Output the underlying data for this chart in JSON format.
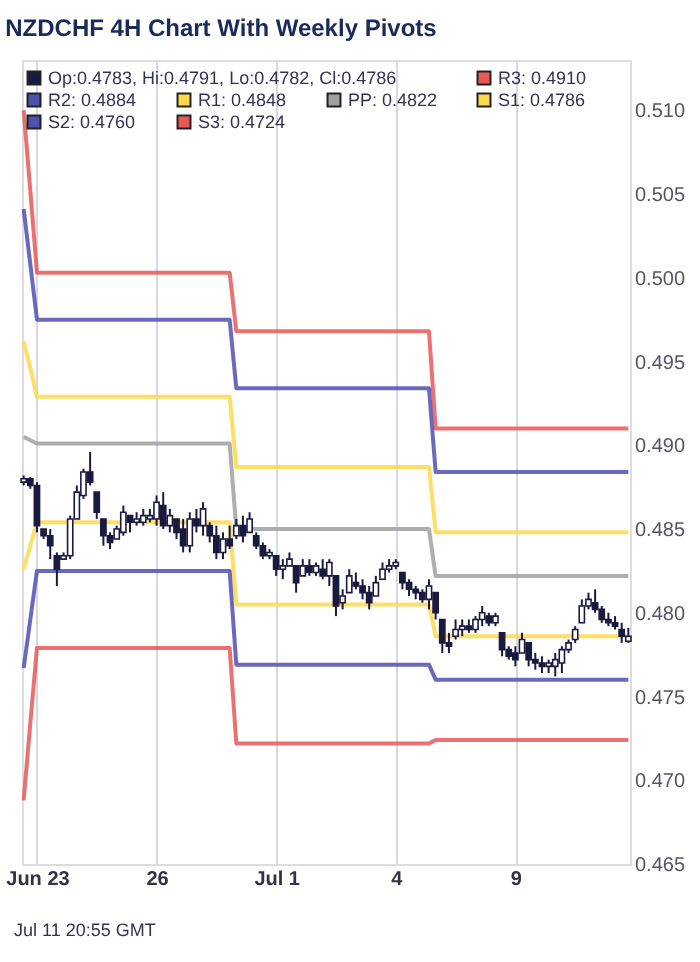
{
  "chart_data": {
    "type": "candlestick",
    "title": "NZDCHF 4H Chart With Weekly Pivots",
    "annotations": [
      "Jul 11 20:55 GMT"
    ],
    "categories": [
      null,
      null,
      "Jun 23",
      null,
      null,
      null,
      null,
      null,
      null,
      null,
      null,
      null,
      null,
      null,
      null,
      null,
      null,
      null,
      null,
      null,
      "26",
      null,
      null,
      null,
      null,
      null,
      null,
      null,
      null,
      null,
      null,
      null,
      null,
      null,
      null,
      null,
      null,
      null,
      "Jul 1",
      null,
      null,
      null,
      null,
      null,
      null,
      null,
      null,
      null,
      null,
      null,
      null,
      null,
      null,
      null,
      null,
      null,
      "4",
      null,
      null,
      null,
      null,
      null,
      null,
      null,
      null,
      null,
      null,
      null,
      null,
      null,
      null,
      null,
      null,
      null,
      "9",
      null,
      null,
      null,
      null,
      null,
      null,
      null,
      null,
      null,
      null,
      null,
      null,
      null,
      null,
      null,
      null,
      null
    ],
    "ylim": [
      0.465,
      0.513
    ],
    "yticks": [
      0.465,
      {
        "value": 0.47,
        "label": "0.470"
      },
      0.475,
      {
        "value": 0.48,
        "label": "0.480"
      },
      0.485,
      {
        "value": 0.49,
        "label": "0.490"
      },
      0.495,
      {
        "value": 0.5,
        "label": "0.500"
      },
      0.505,
      {
        "value": 0.51,
        "label": "0.510"
      }
    ],
    "grid": "x",
    "legend": "top left",
    "series": [
      {
        "name": "Op:0.4783, Hi:0.4791, Lo:0.4782, Cl:0.4786",
        "color": "#1a1a40",
        "ohlc": [
          [
            0.4878,
            0.4882,
            0.4876,
            0.488
          ],
          [
            0.488,
            0.4881,
            0.4874,
            0.4876
          ],
          [
            0.4876,
            0.4878,
            0.4848,
            0.4852
          ],
          [
            0.485,
            0.485,
            0.4844,
            0.4846
          ],
          [
            0.4846,
            0.485,
            0.4832,
            0.484
          ],
          [
            0.4834,
            0.4836,
            0.4816,
            0.4826
          ],
          [
            0.4832,
            0.4836,
            0.4832,
            0.4834
          ],
          [
            0.4834,
            0.4858,
            0.4832,
            0.4856
          ],
          [
            0.4856,
            0.4876,
            0.4856,
            0.4872
          ],
          [
            0.487,
            0.4886,
            0.4868,
            0.4884
          ],
          [
            0.4884,
            0.4896,
            0.4876,
            0.4878
          ],
          [
            0.4872,
            0.4872,
            0.4856,
            0.486
          ],
          [
            0.4856,
            0.4856,
            0.484,
            0.4846
          ],
          [
            0.4846,
            0.4848,
            0.4838,
            0.4842
          ],
          [
            0.4844,
            0.4852,
            0.4844,
            0.485
          ],
          [
            0.4848,
            0.4864,
            0.4846,
            0.486
          ],
          [
            0.4858,
            0.4858,
            0.4848,
            0.4854
          ],
          [
            0.4854,
            0.486,
            0.4852,
            0.4856
          ],
          [
            0.4854,
            0.4862,
            0.4852,
            0.4858
          ],
          [
            0.4856,
            0.4862,
            0.4854,
            0.4858
          ],
          [
            0.4856,
            0.487,
            0.4852,
            0.4866
          ],
          [
            0.4864,
            0.4872,
            0.485,
            0.4852
          ],
          [
            0.4852,
            0.4862,
            0.4848,
            0.4858
          ],
          [
            0.4856,
            0.4856,
            0.4844,
            0.4848
          ],
          [
            0.485,
            0.4856,
            0.4836,
            0.484
          ],
          [
            0.484,
            0.486,
            0.4836,
            0.4856
          ],
          [
            0.4856,
            0.4862,
            0.4848,
            0.4852
          ],
          [
            0.4852,
            0.4866,
            0.4846,
            0.4862
          ],
          [
            0.4852,
            0.4854,
            0.4842,
            0.4846
          ],
          [
            0.4846,
            0.4852,
            0.4832,
            0.4836
          ],
          [
            0.4836,
            0.4848,
            0.4832,
            0.4844
          ],
          [
            0.4844,
            0.4852,
            0.4838,
            0.484
          ],
          [
            0.4846,
            0.4856,
            0.4844,
            0.4852
          ],
          [
            0.4852,
            0.4858,
            0.4842,
            0.4846
          ],
          [
            0.4848,
            0.486,
            0.4848,
            0.4856
          ],
          [
            0.4846,
            0.4848,
            0.4838,
            0.484
          ],
          [
            0.484,
            0.4842,
            0.4832,
            0.4834
          ],
          [
            0.4834,
            0.4838,
            0.4832,
            0.4836
          ],
          [
            0.4834,
            0.4834,
            0.4822,
            0.4826
          ],
          [
            0.4826,
            0.4832,
            0.482,
            0.4828
          ],
          [
            0.4828,
            0.4836,
            0.4828,
            0.4832
          ],
          [
            0.4828,
            0.4828,
            0.4812,
            0.4818
          ],
          [
            0.4822,
            0.4832,
            0.4822,
            0.4828
          ],
          [
            0.4828,
            0.4832,
            0.4822,
            0.4824
          ],
          [
            0.4824,
            0.483,
            0.4822,
            0.4828
          ],
          [
            0.4826,
            0.4832,
            0.482,
            0.4822
          ],
          [
            0.4822,
            0.4832,
            0.4816,
            0.483
          ],
          [
            0.4822,
            0.4822,
            0.4798,
            0.4804
          ],
          [
            0.4806,
            0.4814,
            0.4802,
            0.481
          ],
          [
            0.4812,
            0.4826,
            0.4812,
            0.4822
          ],
          [
            0.4818,
            0.4824,
            0.4814,
            0.4816
          ],
          [
            0.4816,
            0.482,
            0.4808,
            0.4812
          ],
          [
            0.4812,
            0.4816,
            0.4802,
            0.4806
          ],
          [
            0.481,
            0.4822,
            0.481,
            0.4818
          ],
          [
            0.482,
            0.483,
            0.482,
            0.4826
          ],
          [
            0.4826,
            0.4832,
            0.4824,
            0.4828
          ],
          [
            0.4828,
            0.4832,
            0.4826,
            0.483
          ],
          [
            0.4824,
            0.4824,
            0.4814,
            0.4818
          ],
          [
            0.4818,
            0.482,
            0.481,
            0.4814
          ],
          [
            0.4814,
            0.4816,
            0.4808,
            0.4812
          ],
          [
            0.4812,
            0.4814,
            0.4806,
            0.4808
          ],
          [
            0.4808,
            0.482,
            0.4802,
            0.4816
          ],
          [
            0.4812,
            0.4812,
            0.4796,
            0.48
          ],
          [
            0.4796,
            0.4796,
            0.4776,
            0.4782
          ],
          [
            0.4782,
            0.4788,
            0.4776,
            0.478
          ],
          [
            0.4786,
            0.4796,
            0.4784,
            0.479
          ],
          [
            0.479,
            0.4796,
            0.4786,
            0.4792
          ],
          [
            0.4792,
            0.4796,
            0.4788,
            0.479
          ],
          [
            0.479,
            0.4798,
            0.4788,
            0.4796
          ],
          [
            0.4796,
            0.4804,
            0.4792,
            0.48
          ],
          [
            0.4798,
            0.48,
            0.4792,
            0.4794
          ],
          [
            0.4794,
            0.48,
            0.4792,
            0.4798
          ],
          [
            0.4788,
            0.4788,
            0.4774,
            0.4778
          ],
          [
            0.4778,
            0.478,
            0.4772,
            0.4774
          ],
          [
            0.4776,
            0.478,
            0.4768,
            0.4772
          ],
          [
            0.4776,
            0.4788,
            0.4776,
            0.4784
          ],
          [
            0.4782,
            0.4782,
            0.4768,
            0.4772
          ],
          [
            0.4772,
            0.4776,
            0.4766,
            0.477
          ],
          [
            0.477,
            0.4774,
            0.4764,
            0.4768
          ],
          [
            0.4768,
            0.4772,
            0.4764,
            0.477
          ],
          [
            0.4768,
            0.4776,
            0.4762,
            0.4772
          ],
          [
            0.477,
            0.478,
            0.4764,
            0.4778
          ],
          [
            0.4778,
            0.4784,
            0.4776,
            0.4782
          ],
          [
            0.4784,
            0.4792,
            0.4782,
            0.479
          ],
          [
            0.4794,
            0.4808,
            0.4794,
            0.4804
          ],
          [
            0.4804,
            0.4812,
            0.4802,
            0.4808
          ],
          [
            0.4806,
            0.4814,
            0.48,
            0.4802
          ],
          [
            0.4802,
            0.4804,
            0.4794,
            0.4796
          ],
          [
            0.4796,
            0.48,
            0.4792,
            0.4794
          ],
          [
            0.4794,
            0.4798,
            0.479,
            0.4792
          ],
          [
            0.479,
            0.4794,
            0.4782,
            0.4786
          ],
          [
            0.4783,
            0.4791,
            0.4782,
            0.4786
          ]
        ]
      },
      {
        "name": "R3: 0.4910",
        "type": "line",
        "color": "#e85858",
        "values": [
          0.51,
          0.5052,
          0.5003,
          0.5003,
          0.5003,
          0.5003,
          0.5003,
          0.5003,
          0.5003,
          0.5003,
          0.5003,
          0.5003,
          0.5003,
          0.5003,
          0.5003,
          0.5003,
          0.5003,
          0.5003,
          0.5003,
          0.5003,
          0.5003,
          0.5003,
          0.5003,
          0.5003,
          0.5003,
          0.5003,
          0.5003,
          0.5003,
          0.5003,
          0.5003,
          0.5003,
          0.5003,
          0.4968,
          0.4968,
          0.4968,
          0.4968,
          0.4968,
          0.4968,
          0.4968,
          0.4968,
          0.4968,
          0.4968,
          0.4968,
          0.4968,
          0.4968,
          0.4968,
          0.4968,
          0.4968,
          0.4968,
          0.4968,
          0.4968,
          0.4968,
          0.4968,
          0.4968,
          0.4968,
          0.4968,
          0.4968,
          0.4968,
          0.4968,
          0.4968,
          0.4968,
          0.4968,
          0.491,
          0.491,
          0.491,
          0.491,
          0.491,
          0.491,
          0.491,
          0.491,
          0.491,
          0.491,
          0.491,
          0.491,
          0.491,
          0.491,
          0.491,
          0.491,
          0.491,
          0.491,
          0.491,
          0.491,
          0.491,
          0.491,
          0.491,
          0.491,
          0.491,
          0.491,
          0.491,
          0.491,
          0.491,
          0.491
        ]
      },
      {
        "name": "R2: 0.4884",
        "type": "line",
        "color": "#5050b0",
        "values": [
          0.5041,
          0.5008,
          0.4975,
          0.4975,
          0.4975,
          0.4975,
          0.4975,
          0.4975,
          0.4975,
          0.4975,
          0.4975,
          0.4975,
          0.4975,
          0.4975,
          0.4975,
          0.4975,
          0.4975,
          0.4975,
          0.4975,
          0.4975,
          0.4975,
          0.4975,
          0.4975,
          0.4975,
          0.4975,
          0.4975,
          0.4975,
          0.4975,
          0.4975,
          0.4975,
          0.4975,
          0.4975,
          0.4934,
          0.4934,
          0.4934,
          0.4934,
          0.4934,
          0.4934,
          0.4934,
          0.4934,
          0.4934,
          0.4934,
          0.4934,
          0.4934,
          0.4934,
          0.4934,
          0.4934,
          0.4934,
          0.4934,
          0.4934,
          0.4934,
          0.4934,
          0.4934,
          0.4934,
          0.4934,
          0.4934,
          0.4934,
          0.4934,
          0.4934,
          0.4934,
          0.4934,
          0.4934,
          0.4884,
          0.4884,
          0.4884,
          0.4884,
          0.4884,
          0.4884,
          0.4884,
          0.4884,
          0.4884,
          0.4884,
          0.4884,
          0.4884,
          0.4884,
          0.4884,
          0.4884,
          0.4884,
          0.4884,
          0.4884,
          0.4884,
          0.4884,
          0.4884,
          0.4884,
          0.4884,
          0.4884,
          0.4884,
          0.4884,
          0.4884,
          0.4884,
          0.4884,
          0.4884
        ]
      },
      {
        "name": "R1: 0.4848",
        "type": "line",
        "color": "#ffd84a",
        "values": [
          0.4962,
          0.4946,
          0.4929,
          0.4929,
          0.4929,
          0.4929,
          0.4929,
          0.4929,
          0.4929,
          0.4929,
          0.4929,
          0.4929,
          0.4929,
          0.4929,
          0.4929,
          0.4929,
          0.4929,
          0.4929,
          0.4929,
          0.4929,
          0.4929,
          0.4929,
          0.4929,
          0.4929,
          0.4929,
          0.4929,
          0.4929,
          0.4929,
          0.4929,
          0.4929,
          0.4929,
          0.4929,
          0.4887,
          0.4887,
          0.4887,
          0.4887,
          0.4887,
          0.4887,
          0.4887,
          0.4887,
          0.4887,
          0.4887,
          0.4887,
          0.4887,
          0.4887,
          0.4887,
          0.4887,
          0.4887,
          0.4887,
          0.4887,
          0.4887,
          0.4887,
          0.4887,
          0.4887,
          0.4887,
          0.4887,
          0.4887,
          0.4887,
          0.4887,
          0.4887,
          0.4887,
          0.4887,
          0.4848,
          0.4848,
          0.4848,
          0.4848,
          0.4848,
          0.4848,
          0.4848,
          0.4848,
          0.4848,
          0.4848,
          0.4848,
          0.4848,
          0.4848,
          0.4848,
          0.4848,
          0.4848,
          0.4848,
          0.4848,
          0.4848,
          0.4848,
          0.4848,
          0.4848,
          0.4848,
          0.4848,
          0.4848,
          0.4848,
          0.4848,
          0.4848,
          0.4848,
          0.4848
        ]
      },
      {
        "name": "PP: 0.4822",
        "type": "line",
        "color": "#a0a0a0",
        "values": [
          0.4905,
          0.4903,
          0.4901,
          0.4901,
          0.4901,
          0.4901,
          0.4901,
          0.4901,
          0.4901,
          0.4901,
          0.4901,
          0.4901,
          0.4901,
          0.4901,
          0.4901,
          0.4901,
          0.4901,
          0.4901,
          0.4901,
          0.4901,
          0.4901,
          0.4901,
          0.4901,
          0.4901,
          0.4901,
          0.4901,
          0.4901,
          0.4901,
          0.4901,
          0.4901,
          0.4901,
          0.4901,
          0.485,
          0.485,
          0.485,
          0.485,
          0.485,
          0.485,
          0.485,
          0.485,
          0.485,
          0.485,
          0.485,
          0.485,
          0.485,
          0.485,
          0.485,
          0.485,
          0.485,
          0.485,
          0.485,
          0.485,
          0.485,
          0.485,
          0.485,
          0.485,
          0.485,
          0.485,
          0.485,
          0.485,
          0.485,
          0.485,
          0.4822,
          0.4822,
          0.4822,
          0.4822,
          0.4822,
          0.4822,
          0.4822,
          0.4822,
          0.4822,
          0.4822,
          0.4822,
          0.4822,
          0.4822,
          0.4822,
          0.4822,
          0.4822,
          0.4822,
          0.4822,
          0.4822,
          0.4822,
          0.4822,
          0.4822,
          0.4822,
          0.4822,
          0.4822,
          0.4822,
          0.4822,
          0.4822,
          0.4822,
          0.4822
        ]
      },
      {
        "name": "S1: 0.4786",
        "type": "line",
        "color": "#ffd84a",
        "values": [
          0.4826,
          0.484,
          0.4854,
          0.4854,
          0.4854,
          0.4854,
          0.4854,
          0.4854,
          0.4854,
          0.4854,
          0.4854,
          0.4854,
          0.4854,
          0.4854,
          0.4854,
          0.4854,
          0.4854,
          0.4854,
          0.4854,
          0.4854,
          0.4854,
          0.4854,
          0.4854,
          0.4854,
          0.4854,
          0.4854,
          0.4854,
          0.4854,
          0.4854,
          0.4854,
          0.4854,
          0.4854,
          0.4805,
          0.4805,
          0.4805,
          0.4805,
          0.4805,
          0.4805,
          0.4805,
          0.4805,
          0.4805,
          0.4805,
          0.4805,
          0.4805,
          0.4805,
          0.4805,
          0.4805,
          0.4805,
          0.4805,
          0.4805,
          0.4805,
          0.4805,
          0.4805,
          0.4805,
          0.4805,
          0.4805,
          0.4805,
          0.4805,
          0.4805,
          0.4805,
          0.4805,
          0.4805,
          0.4786,
          0.4786,
          0.4786,
          0.4786,
          0.4786,
          0.4786,
          0.4786,
          0.4786,
          0.4786,
          0.4786,
          0.4786,
          0.4786,
          0.4786,
          0.4786,
          0.4786,
          0.4786,
          0.4786,
          0.4786,
          0.4786,
          0.4786,
          0.4786,
          0.4786,
          0.4786,
          0.4786,
          0.4786,
          0.4786,
          0.4786,
          0.4786,
          0.4786,
          0.4786
        ]
      },
      {
        "name": "S2: 0.4760",
        "type": "line",
        "color": "#5050b0",
        "values": [
          0.4767,
          0.4796,
          0.4825,
          0.4825,
          0.4825,
          0.4825,
          0.4825,
          0.4825,
          0.4825,
          0.4825,
          0.4825,
          0.4825,
          0.4825,
          0.4825,
          0.4825,
          0.4825,
          0.4825,
          0.4825,
          0.4825,
          0.4825,
          0.4825,
          0.4825,
          0.4825,
          0.4825,
          0.4825,
          0.4825,
          0.4825,
          0.4825,
          0.4825,
          0.4825,
          0.4825,
          0.4825,
          0.4769,
          0.4769,
          0.4769,
          0.4769,
          0.4769,
          0.4769,
          0.4769,
          0.4769,
          0.4769,
          0.4769,
          0.4769,
          0.4769,
          0.4769,
          0.4769,
          0.4769,
          0.4769,
          0.4769,
          0.4769,
          0.4769,
          0.4769,
          0.4769,
          0.4769,
          0.4769,
          0.4769,
          0.4769,
          0.4769,
          0.4769,
          0.4769,
          0.4769,
          0.4769,
          0.476,
          0.476,
          0.476,
          0.476,
          0.476,
          0.476,
          0.476,
          0.476,
          0.476,
          0.476,
          0.476,
          0.476,
          0.476,
          0.476,
          0.476,
          0.476,
          0.476,
          0.476,
          0.476,
          0.476,
          0.476,
          0.476,
          0.476,
          0.476,
          0.476,
          0.476,
          0.476,
          0.476,
          0.476,
          0.476
        ]
      },
      {
        "name": "S3: 0.4724",
        "type": "line",
        "color": "#e85858",
        "values": [
          0.4688,
          0.4734,
          0.4779,
          0.4779,
          0.4779,
          0.4779,
          0.4779,
          0.4779,
          0.4779,
          0.4779,
          0.4779,
          0.4779,
          0.4779,
          0.4779,
          0.4779,
          0.4779,
          0.4779,
          0.4779,
          0.4779,
          0.4779,
          0.4779,
          0.4779,
          0.4779,
          0.4779,
          0.4779,
          0.4779,
          0.4779,
          0.4779,
          0.4779,
          0.4779,
          0.4779,
          0.4779,
          0.4722,
          0.4722,
          0.4722,
          0.4722,
          0.4722,
          0.4722,
          0.4722,
          0.4722,
          0.4722,
          0.4722,
          0.4722,
          0.4722,
          0.4722,
          0.4722,
          0.4722,
          0.4722,
          0.4722,
          0.4722,
          0.4722,
          0.4722,
          0.4722,
          0.4722,
          0.4722,
          0.4722,
          0.4722,
          0.4722,
          0.4722,
          0.4722,
          0.4722,
          0.4722,
          0.4724,
          0.4724,
          0.4724,
          0.4724,
          0.4724,
          0.4724,
          0.4724,
          0.4724,
          0.4724,
          0.4724,
          0.4724,
          0.4724,
          0.4724,
          0.4724,
          0.4724,
          0.4724,
          0.4724,
          0.4724,
          0.4724,
          0.4724,
          0.4724,
          0.4724,
          0.4724,
          0.4724,
          0.4724,
          0.4724,
          0.4724,
          0.4724,
          0.4724,
          0.4724
        ]
      }
    ]
  }
}
